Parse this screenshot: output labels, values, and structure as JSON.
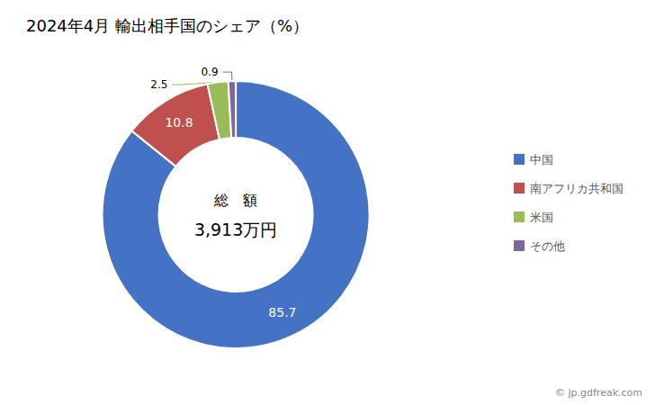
{
  "chart_data": {
    "type": "pie",
    "title": "2024年4月 輸出相手国のシェア（%）",
    "categories": [
      "中国",
      "南アフリカ共和国",
      "米国",
      "その他"
    ],
    "values": [
      85.7,
      10.8,
      2.5,
      0.9
    ],
    "colors": [
      "#4472C4",
      "#C0504D",
      "#9BBB59",
      "#7B68A0"
    ],
    "data_labels": true,
    "legend": "right",
    "annotations": [
      "総　額",
      "3,913万円",
      "© jp.gdfreak.com"
    ]
  }
}
